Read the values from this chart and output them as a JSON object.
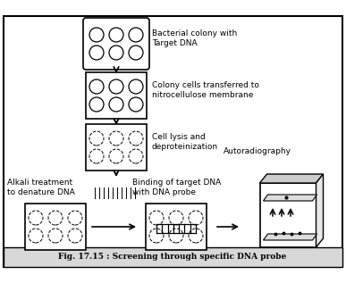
{
  "title": "Fig. 17.15 : Screening through specific DNA probe",
  "bg_color": "#ffffff",
  "border_color": "#000000",
  "text_color": "#000000",
  "labels": {
    "step1": "Bacterial colony with\nTarget DNA",
    "step2": "Colony cells transferred to\nnitrocellulose membrane",
    "step3": "Cell lysis and\ndeproteinization",
    "step4_left": "Alkali treatment\nto denature DNA",
    "step4_mid": "Binding of target DNA\nwith DNA probe",
    "step4_right": "Autoradiography"
  }
}
